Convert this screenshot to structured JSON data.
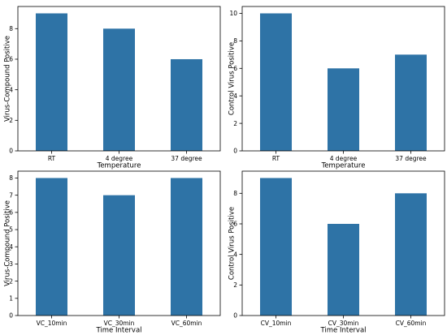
{
  "chart_data": [
    {
      "type": "bar",
      "categories": [
        "RT",
        "4 degree",
        "37 degree"
      ],
      "values": [
        9,
        8,
        6
      ],
      "xlabel": "Temperature",
      "ylabel": "Virus-Compound Positive",
      "ylim": [
        0,
        9.45
      ],
      "yticks": [
        0,
        2,
        4,
        6,
        8
      ],
      "bar_color": "#2e73a6",
      "grid": false
    },
    {
      "type": "bar",
      "categories": [
        "RT",
        "4 degree",
        "37 degree"
      ],
      "values": [
        10,
        6,
        7
      ],
      "xlabel": "Temperature",
      "ylabel": "Control Virus Positive",
      "ylim": [
        0,
        10.5
      ],
      "yticks": [
        0,
        2,
        4,
        6,
        8,
        10
      ],
      "bar_color": "#2e73a6",
      "grid": false
    },
    {
      "type": "bar",
      "categories": [
        "VC_10min",
        "VC_30min",
        "VC_60min"
      ],
      "values": [
        8,
        7,
        8
      ],
      "xlabel": "Time Interval",
      "ylabel": "Virus-Compound Positive",
      "ylim": [
        0,
        8.4
      ],
      "yticks": [
        0,
        1,
        2,
        3,
        4,
        5,
        6,
        7,
        8
      ],
      "bar_color": "#2e73a6",
      "grid": false
    },
    {
      "type": "bar",
      "categories": [
        "CV_10min",
        "CV_30min",
        "CV_60min"
      ],
      "values": [
        9,
        6,
        8
      ],
      "xlabel": "Time Interval",
      "ylabel": "Control Virus Positive",
      "ylim": [
        0,
        9.45
      ],
      "yticks": [
        0,
        2,
        4,
        6,
        8
      ],
      "bar_color": "#2e73a6",
      "grid": false
    }
  ]
}
